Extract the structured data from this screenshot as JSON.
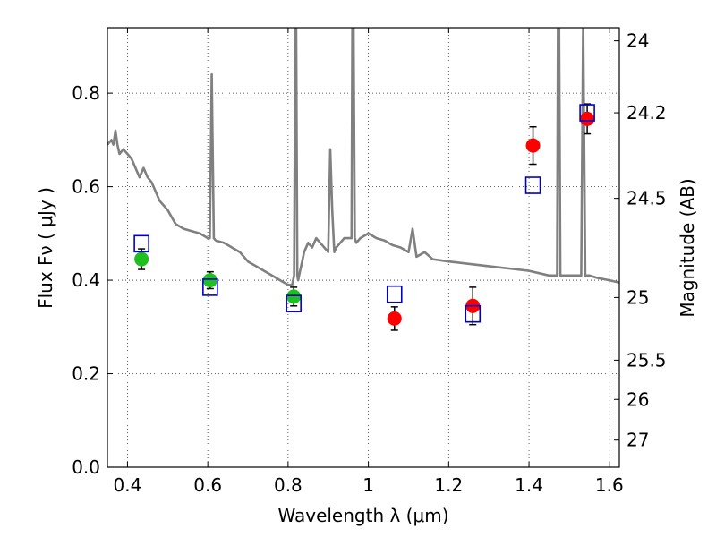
{
  "chart_data": {
    "type": "scatter",
    "xlabel": "Wavelength  λ (μm)",
    "ylabel": "Flux  Fν  ( μJy )",
    "y2label": "Magnitude (AB)",
    "xlim": [
      0.35,
      1.625
    ],
    "ylim": [
      0.0,
      0.94
    ],
    "grid": true,
    "x_ticks": [
      0.4,
      0.6,
      0.8,
      1.0,
      1.2,
      1.4,
      1.6
    ],
    "x_tick_labels": [
      "0.4",
      "0.6",
      "0.8",
      "1",
      "1.2",
      "1.4",
      "1.6"
    ],
    "y_ticks": [
      0.0,
      0.2,
      0.4,
      0.6,
      0.8
    ],
    "y_tick_labels": [
      "0.0",
      "0.2",
      "0.4",
      "0.6",
      "0.8"
    ],
    "y2_ticks": [
      {
        "label": "24",
        "flux": 0.912
      },
      {
        "label": "24.2",
        "flux": 0.758
      },
      {
        "label": "24.5",
        "flux": 0.575
      },
      {
        "label": "25",
        "flux": 0.363
      },
      {
        "label": "25.5",
        "flux": 0.229
      },
      {
        "label": "26",
        "flux": 0.145
      },
      {
        "label": "27",
        "flux": 0.058
      }
    ],
    "colors": {
      "model": "#808080",
      "hst": "#1ebf1e",
      "ir": "#ff0000",
      "model_box": "#0000cc"
    },
    "series": [
      {
        "name": "model-spectrum",
        "kind": "line",
        "x": [
          0.35,
          0.36,
          0.365,
          0.37,
          0.375,
          0.38,
          0.39,
          0.4,
          0.41,
          0.42,
          0.43,
          0.44,
          0.45,
          0.46,
          0.47,
          0.48,
          0.49,
          0.5,
          0.52,
          0.54,
          0.56,
          0.58,
          0.6,
          0.605,
          0.61,
          0.615,
          0.62,
          0.64,
          0.66,
          0.68,
          0.7,
          0.72,
          0.74,
          0.76,
          0.78,
          0.8,
          0.81,
          0.815,
          0.818,
          0.82,
          0.823,
          0.825,
          0.83,
          0.835,
          0.84,
          0.85,
          0.86,
          0.87,
          0.88,
          0.89,
          0.9,
          0.905,
          0.91,
          0.915,
          0.92,
          0.93,
          0.94,
          0.95,
          0.958,
          0.96,
          0.963,
          0.966,
          0.97,
          0.98,
          1.0,
          1.02,
          1.04,
          1.06,
          1.08,
          1.1,
          1.11,
          1.12,
          1.14,
          1.16,
          1.2,
          1.25,
          1.3,
          1.35,
          1.4,
          1.45,
          1.47,
          1.472,
          1.475,
          1.478,
          1.48,
          1.485,
          1.49,
          1.5,
          1.52,
          1.53,
          1.535,
          1.54,
          1.55,
          1.57,
          1.6,
          1.625
        ],
        "y": [
          0.69,
          0.7,
          0.69,
          0.72,
          0.69,
          0.67,
          0.68,
          0.67,
          0.66,
          0.64,
          0.62,
          0.64,
          0.62,
          0.61,
          0.59,
          0.57,
          0.56,
          0.55,
          0.52,
          0.51,
          0.505,
          0.5,
          0.49,
          0.49,
          0.84,
          0.49,
          0.485,
          0.48,
          0.47,
          0.46,
          0.44,
          0.43,
          0.42,
          0.41,
          0.4,
          0.39,
          0.39,
          0.41,
          0.95,
          0.95,
          0.41,
          0.4,
          0.42,
          0.44,
          0.46,
          0.48,
          0.47,
          0.49,
          0.48,
          0.47,
          0.46,
          0.68,
          0.55,
          0.46,
          0.47,
          0.48,
          0.49,
          0.49,
          0.49,
          0.95,
          0.95,
          0.49,
          0.48,
          0.49,
          0.5,
          0.49,
          0.485,
          0.475,
          0.47,
          0.46,
          0.51,
          0.45,
          0.46,
          0.445,
          0.44,
          0.435,
          0.43,
          0.425,
          0.42,
          0.41,
          0.41,
          0.95,
          0.95,
          0.41,
          0.41,
          0.41,
          0.41,
          0.41,
          0.41,
          0.41,
          0.95,
          0.41,
          0.41,
          0.405,
          0.4,
          0.395
        ]
      },
      {
        "name": "hst-photometry",
        "kind": "points",
        "marker": "circle",
        "x": [
          0.435,
          0.606,
          0.814
        ],
        "y": [
          0.445,
          0.4,
          0.365
        ],
        "yerr": [
          0.022,
          0.018,
          0.02
        ]
      },
      {
        "name": "ir-photometry",
        "kind": "points",
        "marker": "circle",
        "x": [
          1.065,
          1.26,
          1.41,
          1.545
        ],
        "y": [
          0.318,
          0.345,
          0.688,
          0.745
        ],
        "yerr": [
          0.025,
          0.04,
          0.04,
          0.032
        ]
      },
      {
        "name": "model-photometry",
        "kind": "points",
        "marker": "square",
        "x": [
          0.435,
          0.606,
          0.814,
          1.065,
          1.26,
          1.41,
          1.545
        ],
        "y": [
          0.478,
          0.385,
          0.35,
          0.37,
          0.328,
          0.603,
          0.758
        ]
      }
    ]
  }
}
